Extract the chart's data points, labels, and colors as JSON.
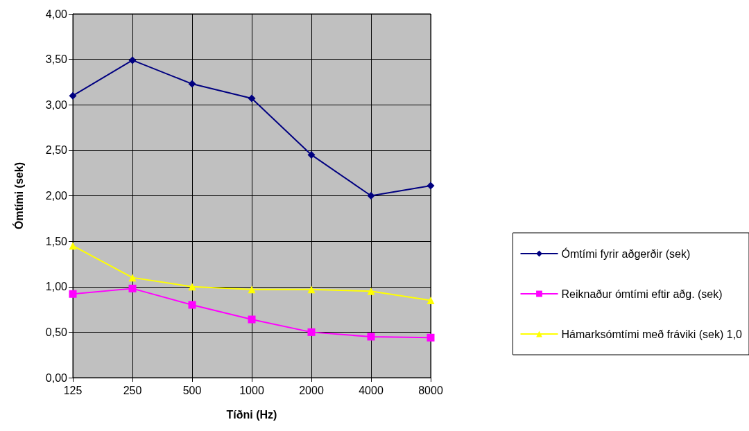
{
  "chart_data": {
    "type": "line",
    "xlabel": "Tíðni (Hz)",
    "ylabel": "Ómtími (sek)",
    "categories": [
      "125",
      "250",
      "500",
      "1000",
      "2000",
      "4000",
      "8000"
    ],
    "series": [
      {
        "name": "Ómtími fyrir aðgerðir (sek)",
        "color": "#000080",
        "marker": "diamond",
        "values": [
          3.1,
          3.49,
          3.23,
          3.07,
          2.45,
          2.0,
          2.11
        ]
      },
      {
        "name": "Reiknaður ómtími eftir aðg. (sek)",
        "color": "#ff00ff",
        "marker": "square",
        "values": [
          0.92,
          0.98,
          0.8,
          0.64,
          0.5,
          0.45,
          0.44
        ]
      },
      {
        "name": "Hámarksómtími með fráviki (sek) 1,0",
        "color": "#ffff00",
        "marker": "triangle",
        "values": [
          1.45,
          1.1,
          1.0,
          0.97,
          0.97,
          0.95,
          0.85
        ]
      }
    ],
    "ylim": [
      0,
      4
    ],
    "yticks": [
      {
        "value": 0,
        "label": "0,00"
      },
      {
        "value": 0.5,
        "label": "0,50"
      },
      {
        "value": 1,
        "label": "1,00"
      },
      {
        "value": 1.5,
        "label": "1,50"
      },
      {
        "value": 2,
        "label": "2,00"
      },
      {
        "value": 2.5,
        "label": "2,50"
      },
      {
        "value": 3,
        "label": "3,00"
      },
      {
        "value": 3.5,
        "label": "3,50"
      },
      {
        "value": 4,
        "label": "4,00"
      }
    ],
    "grid": true,
    "legend": "right",
    "line_style": "solid"
  }
}
